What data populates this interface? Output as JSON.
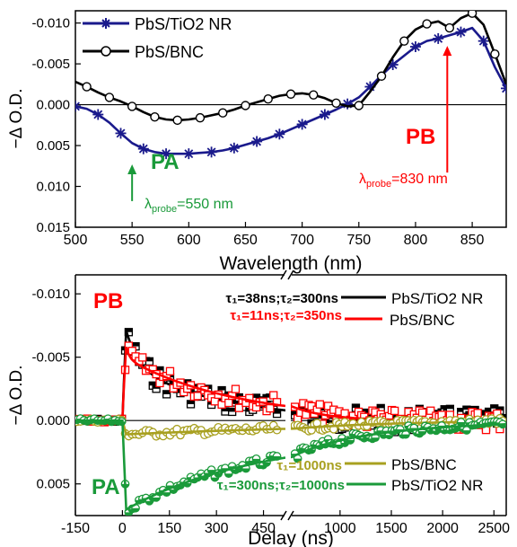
{
  "colors": {
    "tio2": "#1a1a8c",
    "bnc": "#000000",
    "pb": "#ff0000",
    "pa": "#1a9a3a",
    "pa_bnc": "#a8a020",
    "axis": "#000000"
  },
  "chart_data": [
    {
      "type": "line",
      "xlabel": "Wavelength (nm)",
      "ylabel": "−Δ O.D.",
      "xlim": [
        500,
        880
      ],
      "ylim": [
        -0.0115,
        0.015
      ],
      "y_inverted": true,
      "x_ticks": [
        500,
        550,
        600,
        650,
        700,
        750,
        800,
        850
      ],
      "x_tick_labels": [
        "500",
        "550",
        "600",
        "650",
        "700",
        "750",
        "800",
        "850"
      ],
      "y_ticks": [
        -0.01,
        -0.005,
        0.0,
        0.005,
        0.01,
        0.015
      ],
      "y_tick_labels": [
        "-0.010",
        "-0.005",
        "0.000",
        "0.005",
        "0.010",
        "0.015"
      ],
      "zero_line": true,
      "legend_position": "top-left",
      "series": [
        {
          "name": "PbS/TiO2 NR",
          "marker": "asterisk",
          "color_key": "tio2",
          "x": [
            500,
            510,
            520,
            530,
            540,
            550,
            560,
            570,
            580,
            590,
            600,
            610,
            620,
            630,
            640,
            650,
            660,
            670,
            680,
            690,
            700,
            710,
            720,
            730,
            740,
            750,
            760,
            770,
            780,
            790,
            800,
            810,
            820,
            830,
            840,
            850,
            860,
            870,
            880
          ],
          "y": [
            0.0002,
            0.0005,
            0.0012,
            0.0022,
            0.0035,
            0.0047,
            0.0054,
            0.0058,
            0.006,
            0.006,
            0.006,
            0.0059,
            0.0058,
            0.0056,
            0.0053,
            0.0049,
            0.0045,
            0.0041,
            0.0036,
            0.003,
            0.0024,
            0.0018,
            0.0012,
            0.0006,
            -0.0001,
            -0.0009,
            -0.0022,
            -0.0036,
            -0.0049,
            -0.006,
            -0.0071,
            -0.0078,
            -0.0081,
            -0.0085,
            -0.0089,
            -0.0094,
            -0.0078,
            -0.0046,
            -0.002
          ]
        },
        {
          "name": "PbS/BNC",
          "marker": "open-circle",
          "color_key": "bnc",
          "x": [
            500,
            510,
            520,
            530,
            540,
            550,
            560,
            570,
            580,
            590,
            600,
            610,
            620,
            630,
            640,
            650,
            660,
            670,
            680,
            690,
            700,
            710,
            720,
            730,
            740,
            750,
            760,
            770,
            780,
            790,
            800,
            810,
            820,
            830,
            840,
            850,
            860,
            870,
            880
          ],
          "y": [
            -0.0028,
            -0.0022,
            -0.0015,
            -0.0009,
            -0.0004,
            0.0002,
            0.0009,
            0.0015,
            0.0018,
            0.0019,
            0.0018,
            0.0016,
            0.0013,
            0.001,
            0.0006,
            0.0001,
            -0.0003,
            -0.0007,
            -0.0011,
            -0.0013,
            -0.0014,
            -0.0012,
            -0.0008,
            -0.0002,
            0.0002,
            0.0001,
            -0.0016,
            -0.0035,
            -0.0058,
            -0.0078,
            -0.0092,
            -0.0099,
            -0.0102,
            -0.0094,
            -0.0106,
            -0.0112,
            -0.0098,
            -0.0062,
            -0.0025
          ]
        }
      ],
      "annotations": [
        {
          "text": "PA",
          "x": 573,
          "y": 0.0075,
          "color_key": "pa",
          "bold": true
        },
        {
          "text": "PB",
          "x": 808,
          "y": 0.0038,
          "color_key": "pb",
          "bold": true
        },
        {
          "text": "λ",
          "sub": "probe",
          "rest": "=550 nm",
          "x": 552,
          "y": 0.0128,
          "color_key": "pa"
        },
        {
          "text": "λ",
          "sub": "probe",
          "rest": "=830 nm",
          "x": 783,
          "y": 0.0103,
          "color_key": "pb"
        }
      ],
      "arrows": [
        {
          "x": 550,
          "y_from": 0.0118,
          "y_to": 0.0073,
          "color_key": "pa"
        },
        {
          "x": 828,
          "y_from": 0.0083,
          "y_to": -0.0072,
          "color_key": "pb"
        }
      ]
    },
    {
      "type": "line",
      "xlabel": "Delay (ns)",
      "ylabel": "−Δ O.D.",
      "x_axis_break": true,
      "x_segments": [
        {
          "xlim": [
            -150,
            520
          ],
          "ticks": [
            -150,
            0,
            150,
            300,
            450
          ],
          "tick_labels": [
            "-150",
            "0",
            "150",
            "300",
            "450"
          ]
        },
        {
          "xlim": [
            520,
            2620
          ],
          "ticks": [
            1000,
            1500,
            2000,
            2500
          ],
          "tick_labels": [
            "1000",
            "1500",
            "2000",
            "2500"
          ]
        }
      ],
      "ylim": [
        -0.0115,
        0.0075
      ],
      "y_inverted": true,
      "y_ticks": [
        -0.01,
        -0.005,
        0.0,
        0.005
      ],
      "y_tick_labels": [
        "-0.010",
        "-0.005",
        "0.000",
        "0.005"
      ],
      "zero_line": true,
      "legend_position": "right",
      "series": [
        {
          "name": "PbS/TiO2 NR",
          "kind": "PB",
          "color_key": "bnc",
          "marker": "half-filled-square",
          "amp": -0.0083,
          "a1": 0.45,
          "tau1": 38,
          "tau2": 300,
          "fit_label": "τ₁=38ns;τ₂=300ns"
        },
        {
          "name": "PbS/BNC",
          "kind": "PB",
          "color_key": "pb",
          "marker": "open-square",
          "amp": -0.0078,
          "a1": 0.35,
          "tau1": 11,
          "tau2": 350,
          "fit_label": "τ₁=11ns;τ₂=350ns"
        },
        {
          "name": "PbS/BNC",
          "kind": "PA",
          "color_key": "pa_bnc",
          "marker": "open-circle",
          "amp": 0.0011,
          "tau1": 1000,
          "fit_label": "τ₁=1000ns"
        },
        {
          "name": "PbS/TiO2 NR",
          "kind": "PA",
          "color_key": "pa",
          "marker": "half-filled-circle",
          "amp": 0.0072,
          "a1": 0.45,
          "tau1": 300,
          "tau2": 1000,
          "fit_label": "τ₁=300ns;τ₂=1000ns"
        }
      ],
      "annotations": [
        {
          "text": "PB",
          "color_key": "pb",
          "bold": true
        },
        {
          "text": "PA",
          "color_key": "pa",
          "bold": true
        }
      ]
    }
  ]
}
